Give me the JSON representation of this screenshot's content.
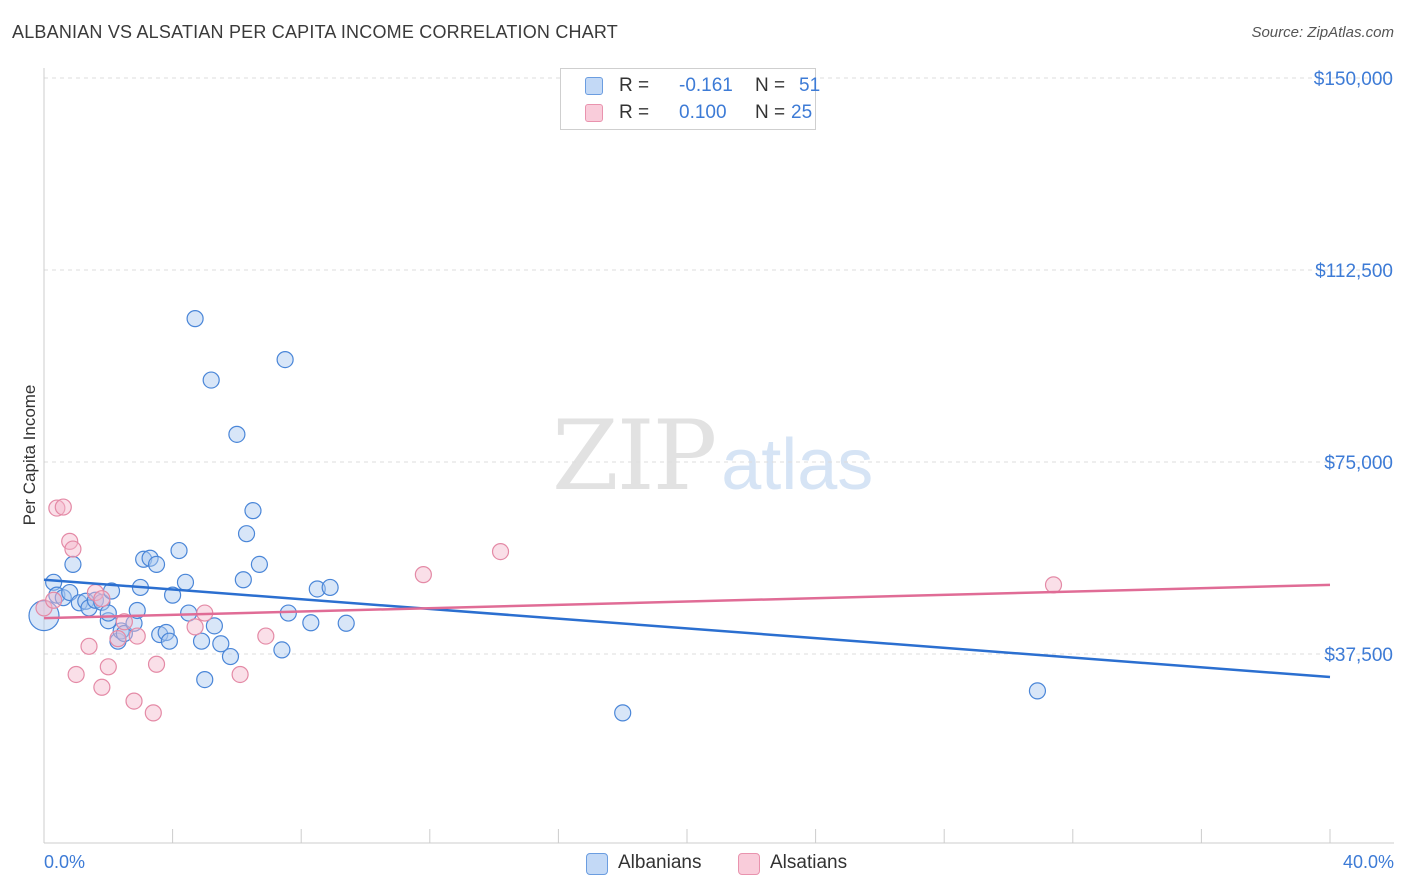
{
  "title": "ALBANIAN VS ALSATIAN PER CAPITA INCOME CORRELATION CHART",
  "source": "Source: ZipAtlas.com",
  "watermark": {
    "part1": "ZIP",
    "part2": "atlas"
  },
  "legend": {
    "rows": [
      {
        "r_label": "R =",
        "r_value": "-0.161",
        "n_label": "N =",
        "n_value": "51",
        "color": "#a9c8f0"
      },
      {
        "r_label": "R =",
        "r_value": "0.100",
        "n_label": "N =",
        "n_value": "25",
        "color": "#f5b9cc"
      }
    ]
  },
  "bottom_legend": {
    "series1": "Albanians",
    "series2": "Alsatians"
  },
  "chart_data": {
    "type": "scatter",
    "title": "ALBANIAN VS ALSATIAN PER CAPITA INCOME CORRELATION CHART",
    "xlabel": "",
    "ylabel": "Per Capita Income",
    "xlim": [
      0,
      40
    ],
    "ylim": [
      0,
      155000
    ],
    "x_tick_labels": {
      "min": "0.0%",
      "max": "40.0%"
    },
    "y_ticks": [
      {
        "value": 37500,
        "label": "$37,500"
      },
      {
        "value": 75000,
        "label": "$75,000"
      },
      {
        "value": 112500,
        "label": "$112,500"
      },
      {
        "value": 150000,
        "label": "$150,000"
      }
    ],
    "grid": true,
    "series": [
      {
        "name": "Albanians",
        "color": "#4a86d8",
        "fill": "#a9c8f0",
        "trend": {
          "x": [
            0,
            40
          ],
          "y": [
            52000,
            33000
          ]
        },
        "points": [
          [
            0.0,
            45000
          ],
          [
            0.3,
            51500
          ],
          [
            0.4,
            49000
          ],
          [
            0.6,
            48500
          ],
          [
            0.8,
            49500
          ],
          [
            0.9,
            55000
          ],
          [
            1.1,
            47500
          ],
          [
            1.3,
            47800
          ],
          [
            1.4,
            46500
          ],
          [
            1.6,
            48000
          ],
          [
            1.8,
            47600
          ],
          [
            2.0,
            44000
          ],
          [
            2.0,
            45500
          ],
          [
            2.1,
            49800
          ],
          [
            2.3,
            40000
          ],
          [
            2.4,
            42000
          ],
          [
            2.5,
            41500
          ],
          [
            2.8,
            43500
          ],
          [
            2.9,
            46000
          ],
          [
            3.0,
            50500
          ],
          [
            3.1,
            56000
          ],
          [
            3.3,
            56200
          ],
          [
            3.5,
            55000
          ],
          [
            3.6,
            41300
          ],
          [
            3.8,
            41700
          ],
          [
            3.9,
            40000
          ],
          [
            4.0,
            49000
          ],
          [
            4.2,
            57700
          ],
          [
            4.4,
            51500
          ],
          [
            4.5,
            45500
          ],
          [
            4.7,
            103000
          ],
          [
            4.9,
            40000
          ],
          [
            5.0,
            32500
          ],
          [
            5.2,
            91000
          ],
          [
            5.3,
            43000
          ],
          [
            5.5,
            39500
          ],
          [
            5.8,
            37000
          ],
          [
            6.0,
            80400
          ],
          [
            6.2,
            52000
          ],
          [
            6.3,
            61000
          ],
          [
            6.5,
            65500
          ],
          [
            6.7,
            55000
          ],
          [
            7.4,
            38300
          ],
          [
            7.5,
            95000
          ],
          [
            7.6,
            45500
          ],
          [
            8.3,
            43600
          ],
          [
            8.5,
            50200
          ],
          [
            8.9,
            50500
          ],
          [
            9.4,
            43500
          ],
          [
            18.0,
            26000
          ],
          [
            30.9,
            30300
          ]
        ],
        "large_points": [
          [
            0.0,
            45000
          ]
        ]
      },
      {
        "name": "Alsatians",
        "color": "#e48aa6",
        "fill": "#f5b9cc",
        "trend": {
          "x": [
            0,
            40
          ],
          "y": [
            44500,
            51000
          ]
        },
        "points": [
          [
            0.0,
            46500
          ],
          [
            0.4,
            66000
          ],
          [
            0.6,
            66200
          ],
          [
            0.8,
            59500
          ],
          [
            0.9,
            58000
          ],
          [
            1.0,
            33500
          ],
          [
            1.4,
            39000
          ],
          [
            1.6,
            49500
          ],
          [
            1.8,
            48300
          ],
          [
            1.8,
            31000
          ],
          [
            2.0,
            35000
          ],
          [
            2.3,
            40500
          ],
          [
            2.5,
            43800
          ],
          [
            2.8,
            28300
          ],
          [
            2.9,
            41000
          ],
          [
            3.4,
            26000
          ],
          [
            3.5,
            35500
          ],
          [
            4.7,
            42800
          ],
          [
            5.0,
            45500
          ],
          [
            6.1,
            33500
          ],
          [
            6.9,
            41000
          ],
          [
            11.8,
            53000
          ],
          [
            14.2,
            57500
          ],
          [
            31.4,
            51000
          ],
          [
            0.3,
            48000
          ]
        ]
      }
    ]
  }
}
